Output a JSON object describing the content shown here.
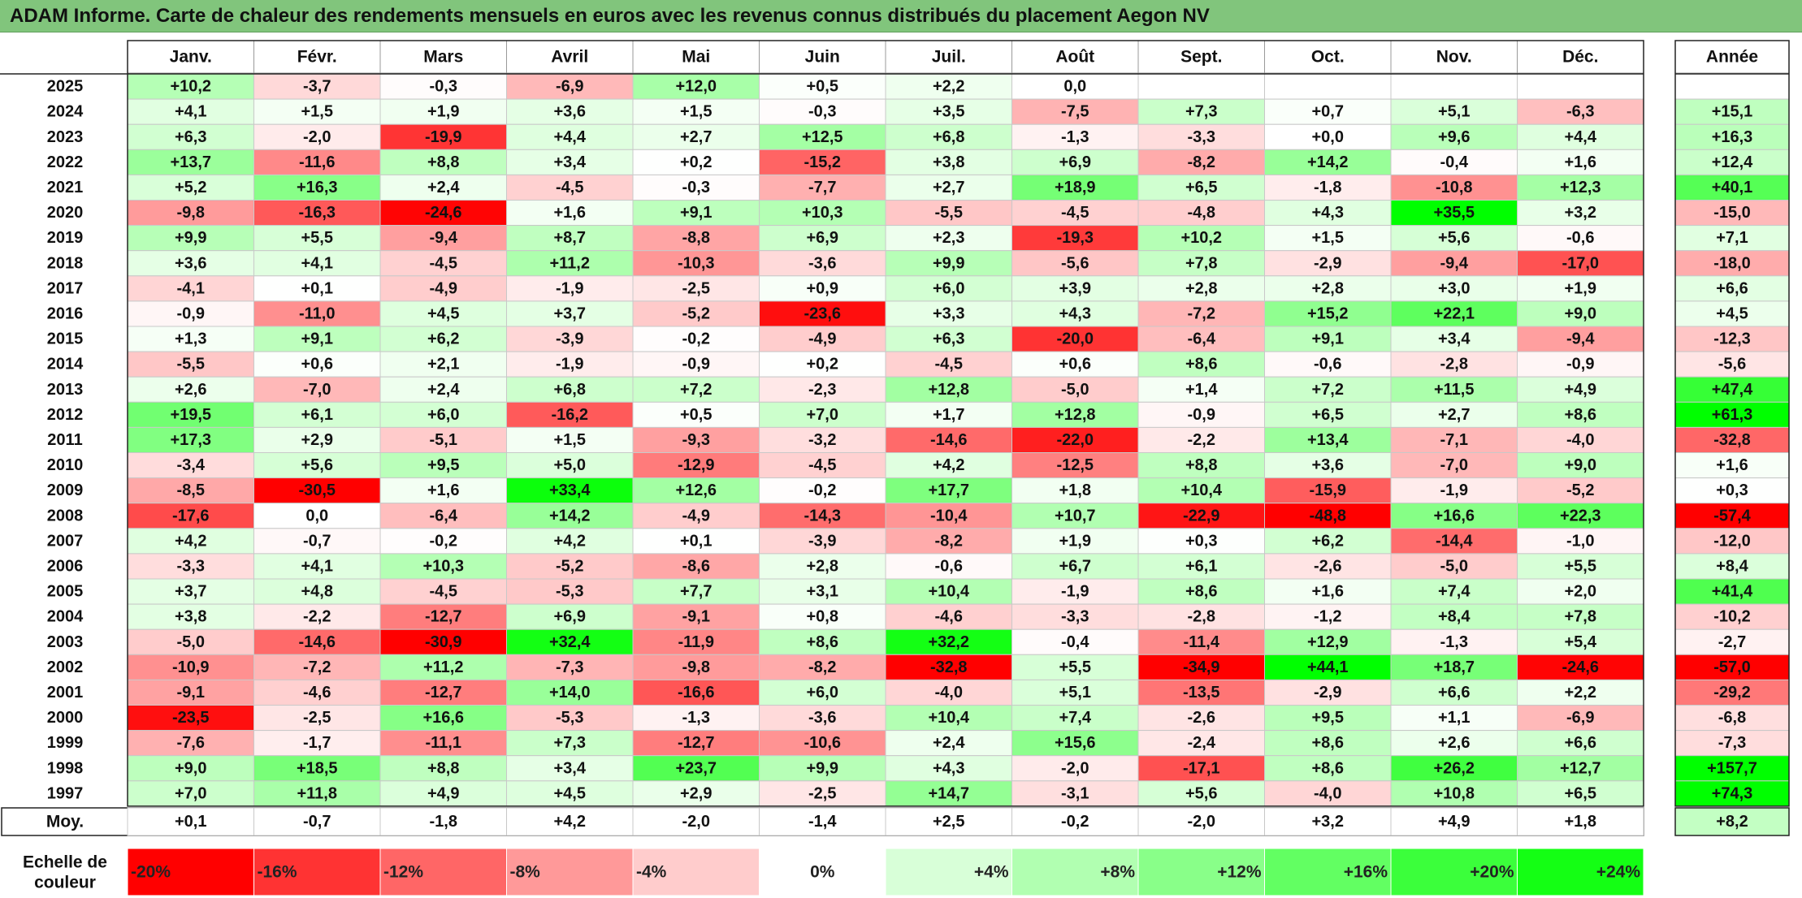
{
  "title": "ADAM Informe. Carte de chaleur des rendements mensuels en euros avec les revenus connus distribués du placement Aegon NV",
  "chart_data": {
    "type": "heatmap",
    "title": "ADAM Informe. Carte de chaleur des rendements mensuels en euros avec les revenus connus distribués du placement Aegon NV",
    "xlabel": "",
    "ylabel": "",
    "months": [
      "Janv.",
      "Févr.",
      "Mars",
      "Avril",
      "Mai",
      "Juin",
      "Juil.",
      "Août",
      "Sept.",
      "Oct.",
      "Nov.",
      "Déc."
    ],
    "annual_label": "Année",
    "rows": [
      {
        "year": "2025",
        "values": [
          "+10,2",
          "-3,7",
          "-0,3",
          "-6,9",
          "+12,0",
          "+0,5",
          "+2,2",
          "0,0",
          null,
          null,
          null,
          null
        ],
        "annual": null
      },
      {
        "year": "2024",
        "values": [
          "+4,1",
          "+1,5",
          "+1,9",
          "+3,6",
          "+1,5",
          "-0,3",
          "+3,5",
          "-7,5",
          "+7,3",
          "+0,7",
          "+5,1",
          "-6,3"
        ],
        "annual": "+15,1"
      },
      {
        "year": "2023",
        "values": [
          "+6,3",
          "-2,0",
          "-19,9",
          "+4,4",
          "+2,7",
          "+12,5",
          "+6,8",
          "-1,3",
          "-3,3",
          "+0,0",
          "+9,6",
          "+4,4"
        ],
        "annual": "+16,3"
      },
      {
        "year": "2022",
        "values": [
          "+13,7",
          "-11,6",
          "+8,8",
          "+3,4",
          "+0,2",
          "-15,2",
          "+3,8",
          "+6,9",
          "-8,2",
          "+14,2",
          "-0,4",
          "+1,6"
        ],
        "annual": "+12,4"
      },
      {
        "year": "2021",
        "values": [
          "+5,2",
          "+16,3",
          "+2,4",
          "-4,5",
          "-0,3",
          "-7,7",
          "+2,7",
          "+18,9",
          "+6,5",
          "-1,8",
          "-10,8",
          "+12,3"
        ],
        "annual": "+40,1"
      },
      {
        "year": "2020",
        "values": [
          "-9,8",
          "-16,3",
          "-24,6",
          "+1,6",
          "+9,1",
          "+10,3",
          "-5,5",
          "-4,5",
          "-4,8",
          "+4,3",
          "+35,5",
          "+3,2"
        ],
        "annual": "-15,0"
      },
      {
        "year": "2019",
        "values": [
          "+9,9",
          "+5,5",
          "-9,4",
          "+8,7",
          "-8,8",
          "+6,9",
          "+2,3",
          "-19,3",
          "+10,2",
          "+1,5",
          "+5,6",
          "-0,6"
        ],
        "annual": "+7,1"
      },
      {
        "year": "2018",
        "values": [
          "+3,6",
          "+4,1",
          "-4,5",
          "+11,2",
          "-10,3",
          "-3,6",
          "+9,9",
          "-5,6",
          "+7,8",
          "-2,9",
          "-9,4",
          "-17,0"
        ],
        "annual": "-18,0"
      },
      {
        "year": "2017",
        "values": [
          "-4,1",
          "+0,1",
          "-4,9",
          "-1,9",
          "-2,5",
          "+0,9",
          "+6,0",
          "+3,9",
          "+2,8",
          "+2,8",
          "+3,0",
          "+1,9"
        ],
        "annual": "+6,6"
      },
      {
        "year": "2016",
        "values": [
          "-0,9",
          "-11,0",
          "+4,5",
          "+3,7",
          "-5,2",
          "-23,6",
          "+3,3",
          "+4,3",
          "-7,2",
          "+15,2",
          "+22,1",
          "+9,0"
        ],
        "annual": "+4,5"
      },
      {
        "year": "2015",
        "values": [
          "+1,3",
          "+9,1",
          "+6,2",
          "-3,9",
          "-0,2",
          "-4,9",
          "+6,3",
          "-20,0",
          "-6,4",
          "+9,1",
          "+3,4",
          "-9,4"
        ],
        "annual": "-12,3"
      },
      {
        "year": "2014",
        "values": [
          "-5,5",
          "+0,6",
          "+2,1",
          "-1,9",
          "-0,9",
          "+0,2",
          "-4,5",
          "+0,6",
          "+8,6",
          "-0,6",
          "-2,8",
          "-0,9"
        ],
        "annual": "-5,6"
      },
      {
        "year": "2013",
        "values": [
          "+2,6",
          "-7,0",
          "+2,4",
          "+6,8",
          "+7,2",
          "-2,3",
          "+12,8",
          "-5,0",
          "+1,4",
          "+7,2",
          "+11,5",
          "+4,9"
        ],
        "annual": "+47,4"
      },
      {
        "year": "2012",
        "values": [
          "+19,5",
          "+6,1",
          "+6,0",
          "-16,2",
          "+0,5",
          "+7,0",
          "+1,7",
          "+12,8",
          "-0,9",
          "+6,5",
          "+2,7",
          "+8,6"
        ],
        "annual": "+61,3"
      },
      {
        "year": "2011",
        "values": [
          "+17,3",
          "+2,9",
          "-5,1",
          "+1,5",
          "-9,3",
          "-3,2",
          "-14,6",
          "-22,0",
          "-2,2",
          "+13,4",
          "-7,1",
          "-4,0"
        ],
        "annual": "-32,8"
      },
      {
        "year": "2010",
        "values": [
          "-3,4",
          "+5,6",
          "+9,5",
          "+5,0",
          "-12,9",
          "-4,5",
          "+4,2",
          "-12,5",
          "+8,8",
          "+3,6",
          "-7,0",
          "+9,0"
        ],
        "annual": "+1,6"
      },
      {
        "year": "2009",
        "values": [
          "-8,5",
          "-30,5",
          "+1,6",
          "+33,4",
          "+12,6",
          "-0,2",
          "+17,7",
          "+1,8",
          "+10,4",
          "-15,9",
          "-1,9",
          "-5,2"
        ],
        "annual": "+0,3"
      },
      {
        "year": "2008",
        "values": [
          "-17,6",
          "0,0",
          "-6,4",
          "+14,2",
          "-4,9",
          "-14,3",
          "-10,4",
          "+10,7",
          "-22,9",
          "-48,8",
          "+16,6",
          "+22,3"
        ],
        "annual": "-57,4"
      },
      {
        "year": "2007",
        "values": [
          "+4,2",
          "-0,7",
          "-0,2",
          "+4,2",
          "+0,1",
          "-3,9",
          "-8,2",
          "+1,9",
          "+0,3",
          "+6,2",
          "-14,4",
          "-1,0"
        ],
        "annual": "-12,0"
      },
      {
        "year": "2006",
        "values": [
          "-3,3",
          "+4,1",
          "+10,3",
          "-5,2",
          "-8,6",
          "+2,8",
          "-0,6",
          "+6,7",
          "+6,1",
          "-2,6",
          "-5,0",
          "+5,5"
        ],
        "annual": "+8,4"
      },
      {
        "year": "2005",
        "values": [
          "+3,7",
          "+4,8",
          "-4,5",
          "-5,3",
          "+7,7",
          "+3,1",
          "+10,4",
          "-1,9",
          "+8,6",
          "+1,6",
          "+7,4",
          "+2,0"
        ],
        "annual": "+41,4"
      },
      {
        "year": "2004",
        "values": [
          "+3,8",
          "-2,2",
          "-12,7",
          "+6,9",
          "-9,1",
          "+0,8",
          "-4,6",
          "-3,3",
          "-2,8",
          "-1,2",
          "+8,4",
          "+7,8"
        ],
        "annual": "-10,2"
      },
      {
        "year": "2003",
        "values": [
          "-5,0",
          "-14,6",
          "-30,9",
          "+32,4",
          "-11,9",
          "+8,6",
          "+32,2",
          "-0,4",
          "-11,4",
          "+12,9",
          "-1,3",
          "+5,4"
        ],
        "annual": "-2,7"
      },
      {
        "year": "2002",
        "values": [
          "-10,9",
          "-7,2",
          "+11,2",
          "-7,3",
          "-9,8",
          "-8,2",
          "-32,8",
          "+5,5",
          "-34,9",
          "+44,1",
          "+18,7",
          "-24,6"
        ],
        "annual": "-57,0"
      },
      {
        "year": "2001",
        "values": [
          "-9,1",
          "-4,6",
          "-12,7",
          "+14,0",
          "-16,6",
          "+6,0",
          "-4,0",
          "+5,1",
          "-13,5",
          "-2,9",
          "+6,6",
          "+2,2"
        ],
        "annual": "-29,2"
      },
      {
        "year": "2000",
        "values": [
          "-23,5",
          "-2,5",
          "+16,6",
          "-5,3",
          "-1,3",
          "-3,6",
          "+10,4",
          "+7,4",
          "-2,6",
          "+9,5",
          "+1,1",
          "-6,9"
        ],
        "annual": "-6,8"
      },
      {
        "year": "1999",
        "values": [
          "-7,6",
          "-1,7",
          "-11,1",
          "+7,3",
          "-12,7",
          "-10,6",
          "+2,4",
          "+15,6",
          "-2,4",
          "+8,6",
          "+2,6",
          "+6,6"
        ],
        "annual": "-7,3"
      },
      {
        "year": "1998",
        "values": [
          "+9,0",
          "+18,5",
          "+8,8",
          "+3,4",
          "+23,7",
          "+9,9",
          "+4,3",
          "-2,0",
          "-17,1",
          "+8,6",
          "+26,2",
          "+12,7"
        ],
        "annual": "+157,7"
      },
      {
        "year": "1997",
        "values": [
          "+7,0",
          "+11,8",
          "+4,9",
          "+4,5",
          "+2,9",
          "-2,5",
          "+14,7",
          "-3,1",
          "+5,6",
          "-4,0",
          "+10,8",
          "+6,5"
        ],
        "annual": "+74,3"
      }
    ],
    "average": {
      "label": "Moy.",
      "values": [
        "+0,1",
        "-0,7",
        "-1,8",
        "+4,2",
        "-2,0",
        "-1,4",
        "+2,5",
        "-0,2",
        "-2,0",
        "+3,2",
        "+4,9",
        "+1,8"
      ],
      "annual": "+8,2"
    },
    "scale": {
      "label_lines": [
        "Echelle de",
        "couleur"
      ],
      "stops": [
        "-20%",
        "-16%",
        "-12%",
        "-8%",
        "-4%",
        "0%",
        "+4%",
        "+8%",
        "+12%",
        "+16%",
        "+20%",
        "+24%"
      ],
      "stop_values": [
        -20,
        -16,
        -12,
        -8,
        -4,
        0,
        4,
        8,
        12,
        16,
        20,
        24
      ]
    },
    "colors": {
      "negative_max": "#ff0000",
      "neutral": "#ffffff",
      "positive_max": "#00ff00",
      "title_bg": "#81c57c"
    }
  }
}
